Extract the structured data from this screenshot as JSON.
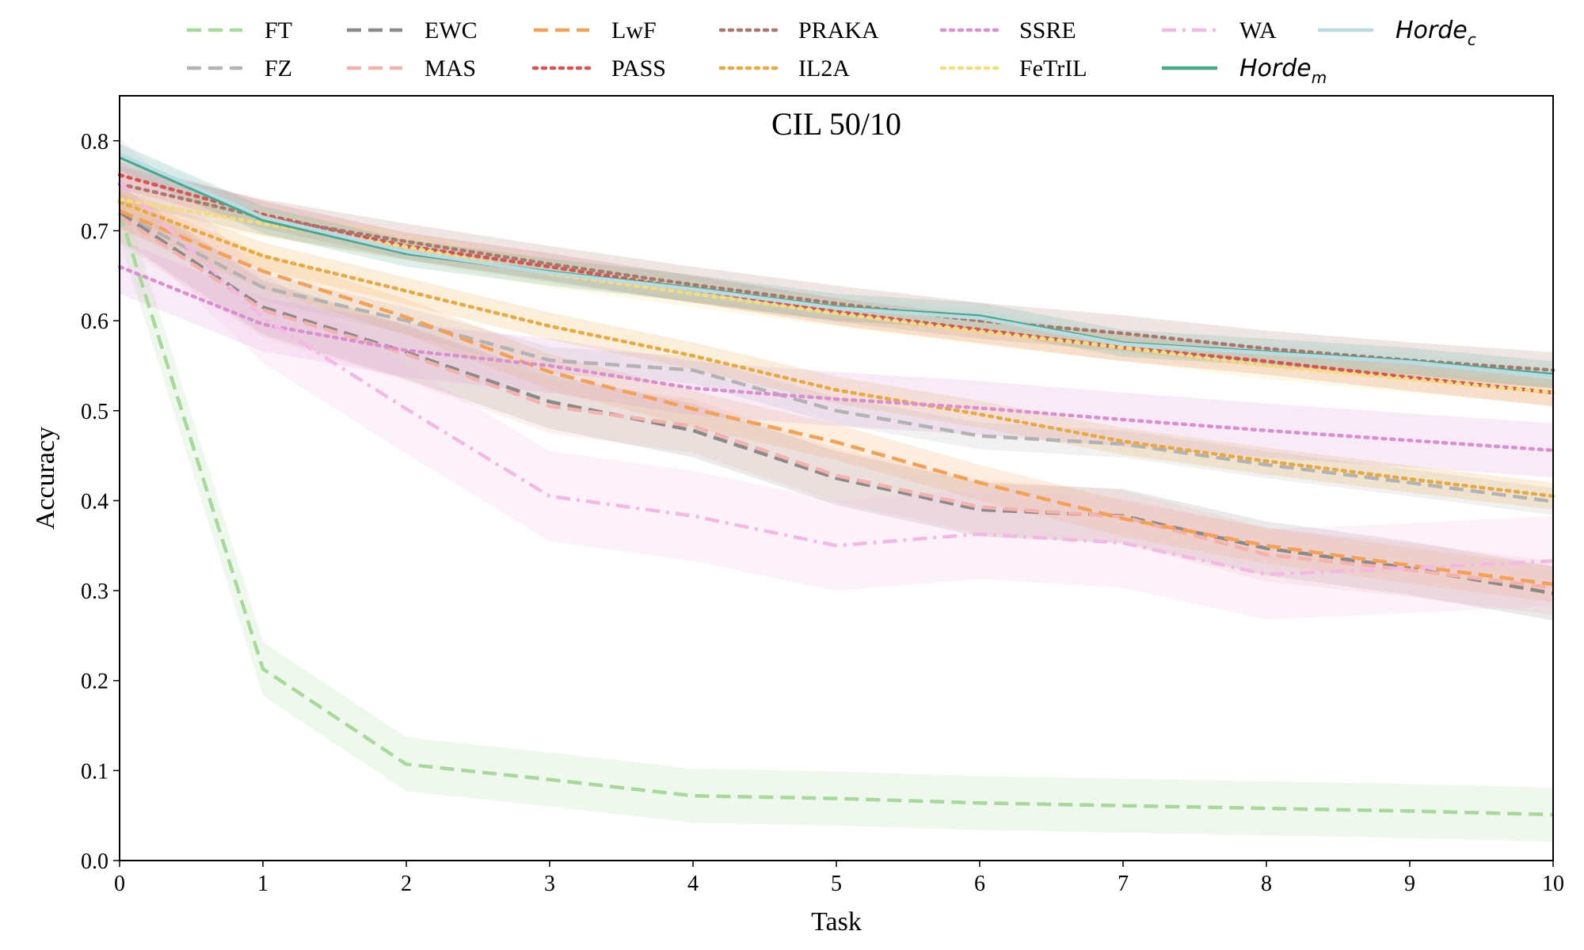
{
  "chart_data": {
    "type": "line",
    "title": "CIL 50/10",
    "xlabel": "Task",
    "ylabel": "Accuracy",
    "xlim": [
      0,
      10
    ],
    "ylim": [
      0,
      0.85
    ],
    "x": [
      0,
      1,
      2,
      3,
      4,
      5,
      6,
      7,
      8,
      9,
      10
    ],
    "x_ticks": [
      "0",
      "1",
      "2",
      "3",
      "4",
      "5",
      "6",
      "7",
      "8",
      "9",
      "10"
    ],
    "y_ticks": [
      "0.0",
      "0.1",
      "0.2",
      "0.3",
      "0.4",
      "0.5",
      "0.6",
      "0.7",
      "0.8"
    ],
    "y_tick_values": [
      0.0,
      0.1,
      0.2,
      0.3,
      0.4,
      0.5,
      0.6,
      0.7,
      0.8
    ],
    "legend_position": "top (outside, above plot)",
    "grid": false,
    "series": [
      {
        "name": "FT",
        "color": "#a6d99a",
        "style": "dashed",
        "values": [
          0.72,
          0.213,
          0.107,
          0.09,
          0.072,
          0.069,
          0.064,
          0.061,
          0.058,
          0.055,
          0.051
        ],
        "band": 0.03
      },
      {
        "name": "FZ",
        "color": "#b3b3b3",
        "style": "dashed",
        "values": [
          0.72,
          0.637,
          0.6,
          0.556,
          0.545,
          0.5,
          0.472,
          0.463,
          0.44,
          0.42,
          0.399
        ],
        "band": 0.015
      },
      {
        "name": "EWC",
        "color": "#8a8a8a",
        "style": "dashed",
        "values": [
          0.72,
          0.615,
          0.565,
          0.51,
          0.478,
          0.425,
          0.39,
          0.383,
          0.347,
          0.325,
          0.297
        ],
        "band": 0.03
      },
      {
        "name": "MAS",
        "color": "#f5b2ac",
        "style": "dashed",
        "values": [
          0.716,
          0.612,
          0.563,
          0.505,
          0.483,
          0.428,
          0.393,
          0.382,
          0.34,
          0.323,
          0.303
        ],
        "band": 0.03
      },
      {
        "name": "LwF",
        "color": "#f4a155",
        "style": "dashed",
        "values": [
          0.722,
          0.655,
          0.604,
          0.543,
          0.502,
          0.465,
          0.42,
          0.38,
          0.35,
          0.328,
          0.307
        ],
        "band": 0.02
      },
      {
        "name": "PASS",
        "color": "#d9544f",
        "style": "dotted",
        "values": [
          0.762,
          0.718,
          0.683,
          0.66,
          0.635,
          0.61,
          0.59,
          0.57,
          0.555,
          0.537,
          0.52
        ],
        "band": 0.015
      },
      {
        "name": "PRAKA",
        "color": "#a9776c",
        "style": "dotted",
        "values": [
          0.752,
          0.715,
          0.688,
          0.663,
          0.64,
          0.619,
          0.6,
          0.586,
          0.569,
          0.556,
          0.545
        ],
        "band": 0.02
      },
      {
        "name": "IL2A",
        "color": "#e8a93e",
        "style": "dotted",
        "values": [
          0.732,
          0.672,
          0.633,
          0.594,
          0.561,
          0.523,
          0.496,
          0.466,
          0.444,
          0.424,
          0.405
        ],
        "band": 0.015
      },
      {
        "name": "SSRE",
        "color": "#d98fd0",
        "style": "dotted",
        "values": [
          0.66,
          0.596,
          0.567,
          0.55,
          0.525,
          0.513,
          0.503,
          0.49,
          0.478,
          0.467,
          0.456
        ],
        "band": 0.03
      },
      {
        "name": "FeTrIL",
        "color": "#f5dc7a",
        "style": "dotted",
        "values": [
          0.735,
          0.708,
          0.682,
          0.652,
          0.63,
          0.608,
          0.588,
          0.57,
          0.55,
          0.535,
          0.52
        ],
        "band": 0.015
      },
      {
        "name": "WA",
        "color": "#f3b8e3",
        "style": "dashdot",
        "values": [
          0.754,
          0.603,
          0.502,
          0.405,
          0.383,
          0.35,
          0.363,
          0.353,
          0.318,
          0.325,
          0.333
        ],
        "band": 0.05
      },
      {
        "name": "Horde",
        "subscript": "m",
        "color": "#4aa88b",
        "style": "solid",
        "values": [
          0.782,
          0.712,
          0.675,
          0.654,
          0.636,
          0.615,
          0.605,
          0.575,
          0.565,
          0.555,
          0.54
        ],
        "band": 0.015
      },
      {
        "name": "Horde",
        "subscript": "c",
        "color": "#b9dce4",
        "style": "solid",
        "values": [
          0.785,
          0.715,
          0.677,
          0.653,
          0.635,
          0.614,
          0.603,
          0.574,
          0.564,
          0.554,
          0.538
        ],
        "band": 0.01
      }
    ]
  }
}
